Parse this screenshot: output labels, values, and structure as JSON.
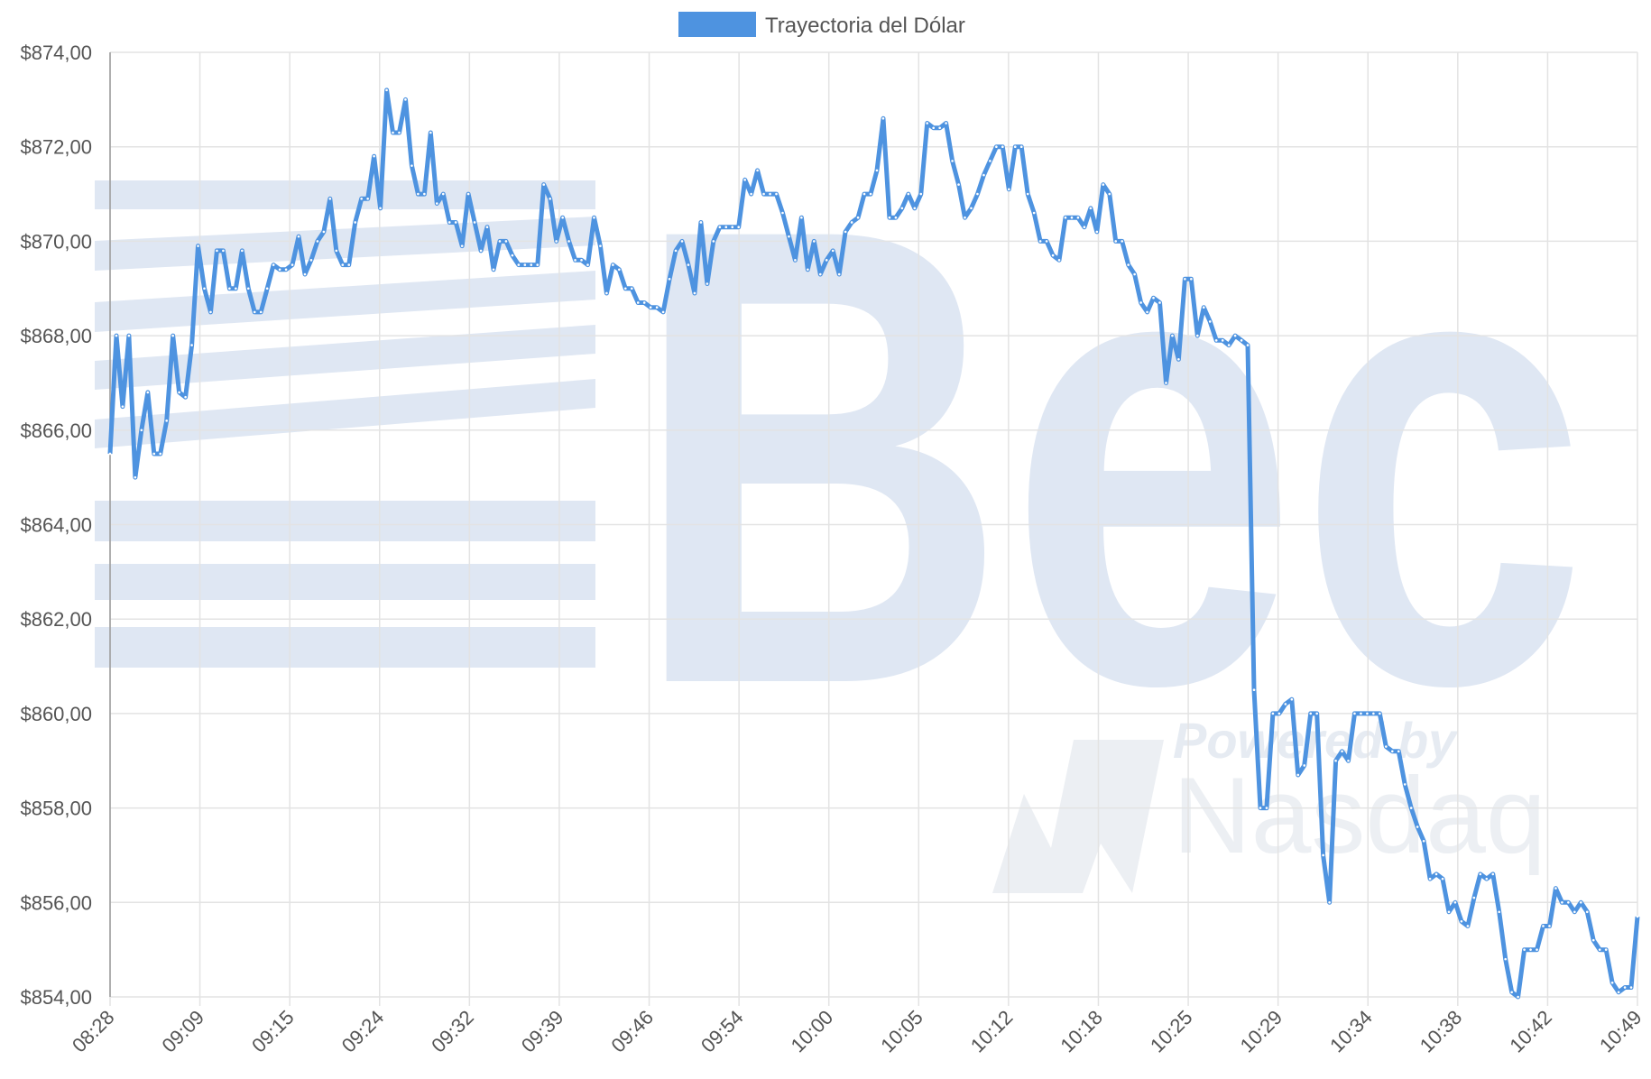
{
  "colors": {
    "series": "#4e93e0",
    "grid": "#e3e3e3",
    "watermark": "#dfe7f3",
    "axis_text": "#555555"
  },
  "watermark": {
    "logo_text": "Bec",
    "powered_text": "Powered by",
    "partner_text": "Nasdaq"
  },
  "chart_data": {
    "type": "line",
    "title": "",
    "xlabel": "",
    "ylabel": "",
    "legend": {
      "position": "top-center",
      "entries": [
        "Trayectoria del Dólar"
      ]
    },
    "grid": true,
    "ylim": [
      854,
      874
    ],
    "y_ticks": [
      874,
      872,
      870,
      868,
      866,
      864,
      862,
      860,
      858,
      856,
      854
    ],
    "y_tick_labels": [
      "$874,00",
      "$872,00",
      "$870,00",
      "$868,00",
      "$866,00",
      "$864,00",
      "$862,00",
      "$860,00",
      "$858,00",
      "$856,00",
      "$854,00"
    ],
    "x_tick_labels": [
      "08:28",
      "09:09",
      "09:15",
      "09:24",
      "09:32",
      "09:39",
      "09:46",
      "09:54",
      "10:00",
      "10:05",
      "10:12",
      "10:18",
      "10:25",
      "10:29",
      "10:34",
      "10:38",
      "10:42",
      "10:49"
    ],
    "series": [
      {
        "name": "Trayectoria del Dólar",
        "values": [
          865.5,
          868.0,
          866.5,
          868.0,
          865.0,
          866.0,
          866.8,
          865.5,
          865.5,
          866.2,
          868.0,
          866.8,
          866.7,
          867.8,
          869.9,
          869.0,
          868.5,
          869.8,
          869.8,
          869.0,
          869.0,
          869.8,
          869.0,
          868.5,
          868.5,
          869.0,
          869.5,
          869.4,
          869.4,
          869.5,
          870.1,
          869.3,
          869.6,
          870.0,
          870.2,
          870.9,
          869.8,
          869.5,
          869.5,
          870.4,
          870.9,
          870.9,
          871.8,
          870.7,
          873.2,
          872.3,
          872.3,
          873.0,
          871.6,
          871.0,
          871.0,
          872.3,
          870.8,
          871.0,
          870.4,
          870.4,
          869.9,
          871.0,
          870.4,
          869.8,
          870.3,
          869.4,
          870.0,
          870.0,
          869.7,
          869.5,
          869.5,
          869.5,
          869.5,
          871.2,
          870.9,
          870.0,
          870.5,
          870.0,
          869.6,
          869.6,
          869.5,
          870.5,
          869.9,
          868.9,
          869.5,
          869.4,
          869.0,
          869.0,
          868.7,
          868.7,
          868.6,
          868.6,
          868.5,
          869.2,
          869.8,
          870.0,
          869.5,
          868.9,
          870.4,
          869.1,
          870.0,
          870.3,
          870.3,
          870.3,
          870.3,
          871.3,
          871.0,
          871.5,
          871.0,
          871.0,
          871.0,
          870.6,
          870.1,
          869.6,
          870.5,
          869.4,
          870.0,
          869.3,
          869.6,
          869.8,
          869.3,
          870.2,
          870.4,
          870.5,
          871.0,
          871.0,
          871.5,
          872.6,
          870.5,
          870.5,
          870.7,
          871.0,
          870.7,
          871.0,
          872.5,
          872.4,
          872.4,
          872.5,
          871.7,
          871.2,
          870.5,
          870.7,
          871.0,
          871.4,
          871.7,
          872.0,
          872.0,
          871.1,
          872.0,
          872.0,
          871.0,
          870.6,
          870.0,
          870.0,
          869.7,
          869.6,
          870.5,
          870.5,
          870.5,
          870.3,
          870.7,
          870.2,
          871.2,
          871.0,
          870.0,
          870.0,
          869.5,
          869.3,
          868.7,
          868.5,
          868.8,
          868.7,
          867.0,
          868.0,
          867.5,
          869.2,
          869.2,
          868.0,
          868.6,
          868.3,
          867.9,
          867.9,
          867.8,
          868.0,
          867.9,
          867.8,
          860.5,
          858.0,
          858.0,
          860.0,
          860.0,
          860.2,
          860.3,
          858.7,
          858.9,
          860.0,
          860.0,
          857.0,
          856.0,
          859.0,
          859.2,
          859.0,
          860.0,
          860.0,
          860.0,
          860.0,
          860.0,
          859.3,
          859.2,
          859.2,
          858.5,
          858.0,
          857.6,
          857.3,
          856.5,
          856.6,
          856.5,
          855.8,
          856.0,
          855.6,
          855.5,
          856.1,
          856.6,
          856.5,
          856.6,
          855.8,
          854.8,
          854.1,
          854.0,
          855.0,
          855.0,
          855.0,
          855.5,
          855.5,
          856.3,
          856.0,
          856.0,
          855.8,
          856.0,
          855.8,
          855.2,
          855.0,
          855.0,
          854.3,
          854.1,
          854.2,
          854.2,
          855.7
        ]
      }
    ]
  }
}
